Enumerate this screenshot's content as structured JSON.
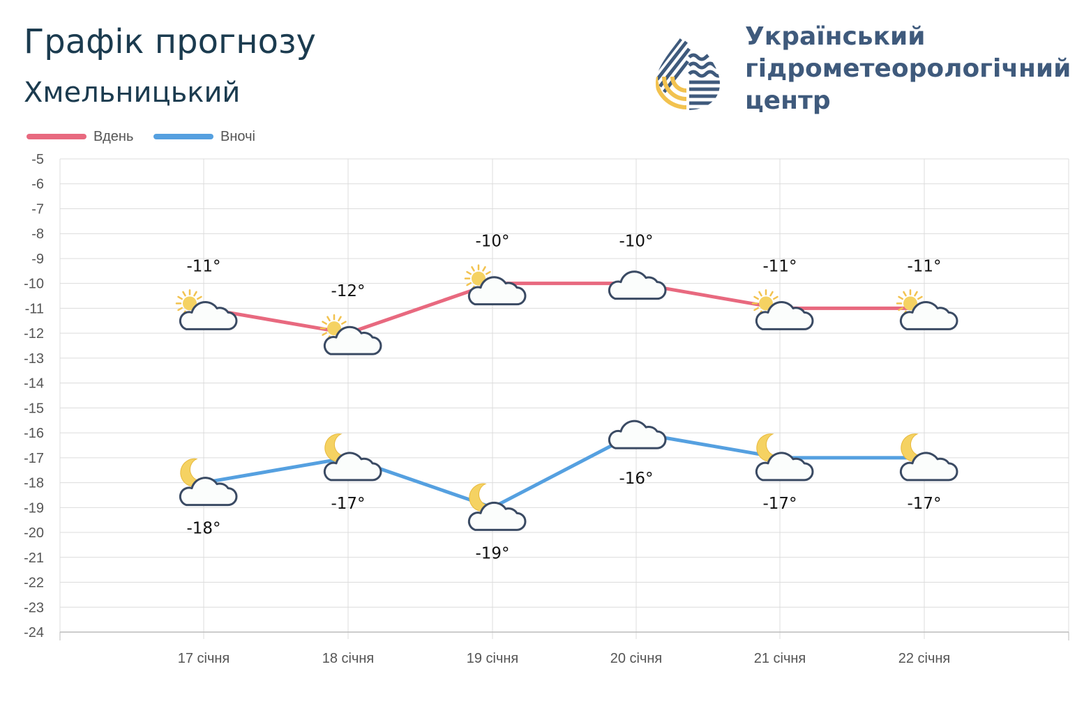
{
  "header": {
    "title": "Графік прогнозу",
    "city": "Хмельницький",
    "org_lines": [
      "Український",
      "гідрометеорологічний",
      "центр"
    ]
  },
  "colors": {
    "day": "#e8697f",
    "night": "#55a0e0",
    "title": "#1b3b4f",
    "org": "#3f5a7c",
    "logo_yellow": "#f2c24f",
    "grid": "#dcdcdc"
  },
  "chart_data": {
    "type": "line",
    "categories": [
      "17 січня",
      "18 січня",
      "19 січня",
      "20 січня",
      "21 січня",
      "22 січня"
    ],
    "series": [
      {
        "name": "Вдень",
        "values": [
          -11,
          -12,
          -10,
          -10,
          -11,
          -11
        ],
        "labels": [
          "-11°",
          "-12°",
          "-10°",
          "-10°",
          "-11°",
          "-11°"
        ],
        "icons": [
          "sun-cloud-icon",
          "sun-cloud-icon",
          "sun-cloud-icon",
          "cloud-icon",
          "sun-cloud-icon",
          "sun-cloud-icon"
        ]
      },
      {
        "name": "Вночі",
        "values": [
          -18,
          -17,
          -19,
          -16,
          -17,
          -17
        ],
        "labels": [
          "-18°",
          "-17°",
          "-19°",
          "-16°",
          "-17°",
          "-17°"
        ],
        "icons": [
          "moon-cloud-icon",
          "moon-cloud-icon",
          "moon-cloud-icon",
          "cloud-icon",
          "moon-cloud-icon",
          "moon-cloud-icon"
        ]
      }
    ],
    "ylim": [
      -24,
      -5
    ],
    "yticks": [
      "-5",
      "-6",
      "-7",
      "-8",
      "-9",
      "-10",
      "-11",
      "-12",
      "-13",
      "-14",
      "-15",
      "-16",
      "-17",
      "-18",
      "-19",
      "-20",
      "-21",
      "-22",
      "-23",
      "-24"
    ],
    "grid": true,
    "legend": "top-left"
  }
}
